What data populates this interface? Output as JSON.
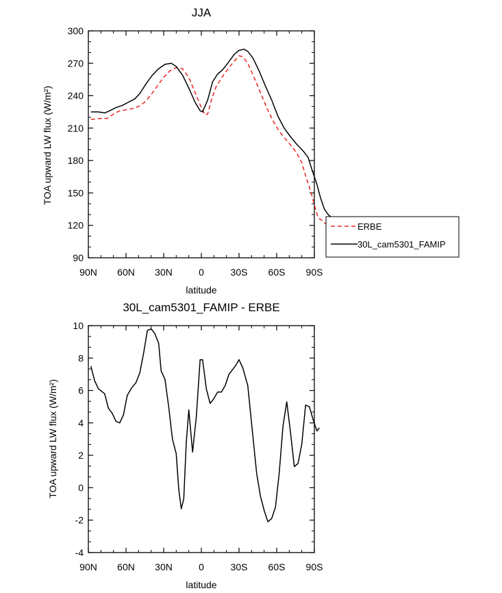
{
  "chart_data": [
    {
      "type": "line",
      "title": "JJA",
      "xlabel": "latitude",
      "ylabel": "TOA upward LW flux (W/m²)",
      "xlim": [
        90,
        -90
      ],
      "ylim": [
        90,
        300
      ],
      "x_ticks": [
        {
          "value": 90,
          "label": "90N"
        },
        {
          "value": 60,
          "label": "60N"
        },
        {
          "value": 30,
          "label": "30N"
        },
        {
          "value": 0,
          "label": "0"
        },
        {
          "value": -30,
          "label": "30S"
        },
        {
          "value": -60,
          "label": "60S"
        },
        {
          "value": -90,
          "label": "90S"
        }
      ],
      "y_ticks": [
        90,
        120,
        150,
        180,
        210,
        240,
        270,
        300
      ],
      "grid": false,
      "legend_position": "right, outside",
      "series": [
        {
          "name": "ERBE",
          "color": "#e8251f",
          "dash": true,
          "points": [
            [
              88,
              218
            ],
            [
              80,
              219
            ],
            [
              75,
              219
            ],
            [
              70,
              223
            ],
            [
              65,
              226
            ],
            [
              60,
              227
            ],
            [
              55,
              228
            ],
            [
              50,
              230
            ],
            [
              45,
              234
            ],
            [
              40,
              241
            ],
            [
              35,
              249
            ],
            [
              30,
              257
            ],
            [
              25,
              263
            ],
            [
              20,
              266
            ],
            [
              15,
              265
            ],
            [
              10,
              257
            ],
            [
              5,
              243
            ],
            [
              0,
              229
            ],
            [
              -3,
              222
            ],
            [
              -5,
              223
            ],
            [
              -8,
              236
            ],
            [
              -12,
              249
            ],
            [
              -17,
              258
            ],
            [
              -22,
              266
            ],
            [
              -27,
              273
            ],
            [
              -30,
              277
            ],
            [
              -33,
              276
            ],
            [
              -37,
              270
            ],
            [
              -42,
              257
            ],
            [
              -47,
              243
            ],
            [
              -52,
              229
            ],
            [
              -57,
              217
            ],
            [
              -62,
              207
            ],
            [
              -67,
              200
            ],
            [
              -72,
              193
            ],
            [
              -76,
              187
            ],
            [
              -80,
              178
            ],
            [
              -83,
              166
            ],
            [
              -87,
              152
            ],
            [
              -90,
              139
            ],
            [
              -93,
              127
            ],
            [
              -97,
              124
            ],
            [
              -100,
              120
            ],
            [
              -102,
              114
            ]
          ]
        },
        {
          "name": "30L_cam5301_FAMIP",
          "color": "#000000",
          "dash": false,
          "points": [
            [
              88,
              225
            ],
            [
              82,
              225
            ],
            [
              77,
              224
            ],
            [
              73,
              226
            ],
            [
              68,
              229
            ],
            [
              63,
              231
            ],
            [
              58,
              234
            ],
            [
              53,
              237
            ],
            [
              49,
              242
            ],
            [
              44,
              251
            ],
            [
              39,
              259
            ],
            [
              34,
              265
            ],
            [
              29,
              269
            ],
            [
              24,
              270
            ],
            [
              20,
              267
            ],
            [
              15,
              259
            ],
            [
              10,
              247
            ],
            [
              5,
              234
            ],
            [
              1,
              226
            ],
            [
              -1,
              225
            ],
            [
              -5,
              236
            ],
            [
              -9,
              253
            ],
            [
              -13,
              260
            ],
            [
              -17,
              264
            ],
            [
              -21,
              270
            ],
            [
              -26,
              278
            ],
            [
              -30,
              282
            ],
            [
              -34,
              283
            ],
            [
              -37,
              281
            ],
            [
              -41,
              275
            ],
            [
              -46,
              263
            ],
            [
              -51,
              249
            ],
            [
              -56,
              236
            ],
            [
              -61,
              221
            ],
            [
              -66,
              210
            ],
            [
              -71,
              202
            ],
            [
              -76,
              195
            ],
            [
              -81,
              189
            ],
            [
              -85,
              183
            ],
            [
              -88,
              172
            ],
            [
              -92,
              158
            ],
            [
              -95,
              145
            ],
            [
              -98,
              135
            ],
            [
              -101,
              130
            ],
            [
              -105,
              126
            ],
            [
              -109,
              119
            ]
          ]
        }
      ]
    },
    {
      "type": "line",
      "title": "30L_cam5301_FAMIP - ERBE",
      "xlabel": "latitude",
      "ylabel": "TOA upward LW flux (W/m²)",
      "xlim": [
        90,
        -90
      ],
      "ylim": [
        -4,
        10
      ],
      "x_ticks": [
        {
          "value": 90,
          "label": "90N"
        },
        {
          "value": 60,
          "label": "60N"
        },
        {
          "value": 30,
          "label": "30N"
        },
        {
          "value": 0,
          "label": "0"
        },
        {
          "value": -30,
          "label": "30S"
        },
        {
          "value": -60,
          "label": "60S"
        },
        {
          "value": -90,
          "label": "90S"
        }
      ],
      "y_ticks": [
        -4,
        -2,
        0,
        2,
        4,
        6,
        8,
        10
      ],
      "grid": false,
      "series": [
        {
          "color": "#000000",
          "points": [
            [
              88,
              7.5
            ],
            [
              85,
              6.6
            ],
            [
              82,
              6.1
            ],
            [
              77,
              5.8
            ],
            [
              74,
              4.9
            ],
            [
              71,
              4.6
            ],
            [
              68,
              4.1
            ],
            [
              65,
              4.0
            ],
            [
              62,
              4.5
            ],
            [
              59,
              5.7
            ],
            [
              56,
              6.1
            ],
            [
              52,
              6.5
            ],
            [
              49,
              7.1
            ],
            [
              46,
              8.3
            ],
            [
              43,
              9.7
            ],
            [
              40,
              9.8
            ],
            [
              37,
              9.5
            ],
            [
              34,
              8.9
            ],
            [
              32,
              7.2
            ],
            [
              29,
              6.7
            ],
            [
              26,
              5.0
            ],
            [
              23,
              3.0
            ],
            [
              20,
              2.1
            ],
            [
              18,
              -0.1
            ],
            [
              16,
              -1.3
            ],
            [
              14,
              -0.7
            ],
            [
              12,
              2.8
            ],
            [
              10,
              4.8
            ],
            [
              7,
              2.2
            ],
            [
              4,
              4.4
            ],
            [
              1,
              7.9
            ],
            [
              -1,
              7.9
            ],
            [
              -4,
              6.1
            ],
            [
              -7,
              5.2
            ],
            [
              -10,
              5.5
            ],
            [
              -13,
              5.9
            ],
            [
              -16,
              5.9
            ],
            [
              -19,
              6.3
            ],
            [
              -22,
              7.0
            ],
            [
              -27,
              7.5
            ],
            [
              -30,
              7.9
            ],
            [
              -33,
              7.4
            ],
            [
              -37,
              6.3
            ],
            [
              -41,
              3.2
            ],
            [
              -44,
              0.9
            ],
            [
              -47,
              -0.5
            ],
            [
              -50,
              -1.4
            ],
            [
              -53,
              -2.1
            ],
            [
              -56,
              -1.9
            ],
            [
              -59,
              -1.2
            ],
            [
              -62,
              0.9
            ],
            [
              -65,
              3.8
            ],
            [
              -68,
              5.3
            ],
            [
              -71,
              3.4
            ],
            [
              -74,
              1.3
            ],
            [
              -77,
              1.5
            ],
            [
              -80,
              2.7
            ],
            [
              -83,
              5.1
            ],
            [
              -86,
              5.0
            ],
            [
              -89,
              4.2
            ],
            [
              -92,
              3.5
            ],
            [
              -94,
              3.7
            ]
          ]
        }
      ]
    }
  ]
}
